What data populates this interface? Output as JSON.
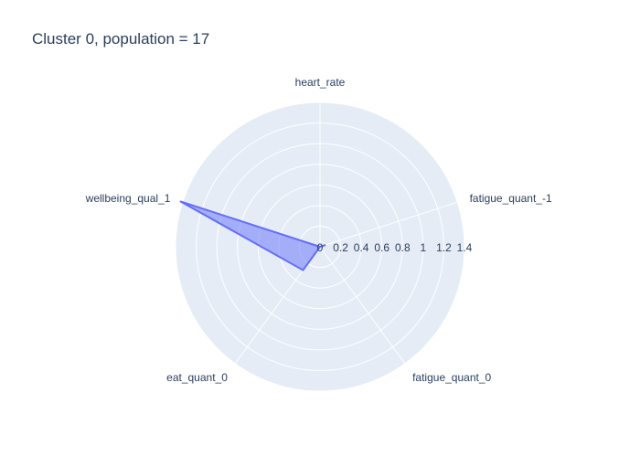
{
  "chart_data": {
    "type": "radar",
    "title": "Cluster 0, population = 17",
    "axes": [
      "heart_rate",
      "fatigue_quant_-1",
      "fatigue_quant_0",
      "eat_quant_0",
      "wellbeing_qual_1"
    ],
    "series": [
      {
        "values": [
          0.0,
          0.05,
          0.0,
          0.28,
          1.42
        ],
        "color": "#636efa",
        "fill": "toself"
      }
    ],
    "radial_range": [
      0,
      1.4
    ],
    "radial_ticks": [
      "0",
      "0.2",
      "0.4",
      "0.6",
      "0.8",
      "1",
      "1.2",
      "1.4"
    ],
    "grid": true,
    "colors": {
      "plot_bg": "#e5ecf6",
      "grid": "#ffffff",
      "line": "#636efa",
      "fill": "rgba(99,110,250,0.5)"
    }
  }
}
